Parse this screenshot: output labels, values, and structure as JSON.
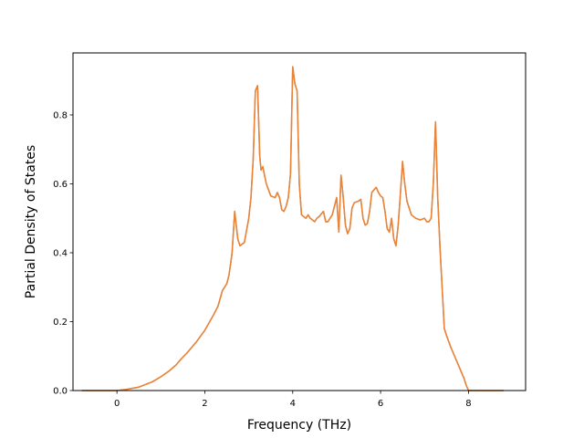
{
  "chart_data": {
    "type": "line",
    "title": "",
    "xlabel": "Frequency (THz)",
    "ylabel": "Partial Density of States",
    "xlim": [
      -1.0,
      9.3
    ],
    "ylim": [
      0.0,
      0.98
    ],
    "grid": false,
    "xticks": [
      0,
      2,
      4,
      6,
      8
    ],
    "xtick_labels": [
      "0",
      "2",
      "4",
      "6",
      "8"
    ],
    "yticks": [
      0.0,
      0.2,
      0.4,
      0.6,
      0.8
    ],
    "ytick_labels": [
      "0.0",
      "0.2",
      "0.4",
      "0.6",
      "0.8"
    ],
    "series": [
      {
        "color": "#e8833a",
        "x": [
          -0.8,
          0.0,
          0.2,
          0.5,
          0.8,
          1.0,
          1.2,
          1.35,
          1.45,
          1.6,
          1.8,
          2.0,
          2.2,
          2.3,
          2.4,
          2.5,
          2.55,
          2.6,
          2.62,
          2.68,
          2.75,
          2.8,
          2.9,
          3.0,
          3.05,
          3.1,
          3.15,
          3.2,
          3.25,
          3.28,
          3.32,
          3.35,
          3.4,
          3.5,
          3.6,
          3.65,
          3.7,
          3.75,
          3.8,
          3.85,
          3.9,
          3.95,
          4.0,
          4.05,
          4.1,
          4.15,
          4.2,
          4.3,
          4.35,
          4.4,
          4.5,
          4.55,
          4.6,
          4.7,
          4.75,
          4.8,
          4.9,
          5.0,
          5.05,
          5.1,
          5.15,
          5.2,
          5.25,
          5.3,
          5.35,
          5.4,
          5.5,
          5.55,
          5.6,
          5.65,
          5.7,
          5.75,
          5.8,
          5.9,
          5.95,
          6.0,
          6.05,
          6.1,
          6.15,
          6.2,
          6.25,
          6.3,
          6.35,
          6.4,
          6.45,
          6.5,
          6.55,
          6.6,
          6.7,
          6.8,
          6.9,
          7.0,
          7.05,
          7.1,
          7.15,
          7.2,
          7.25,
          7.3,
          7.35,
          7.4,
          7.45,
          7.5,
          7.6,
          7.7,
          7.8,
          7.9,
          7.95,
          8.0,
          8.05,
          8.2,
          8.5,
          8.8
        ],
        "values": [
          0.0,
          0.0,
          0.003,
          0.01,
          0.025,
          0.04,
          0.058,
          0.075,
          0.09,
          0.11,
          0.14,
          0.175,
          0.22,
          0.245,
          0.29,
          0.31,
          0.335,
          0.38,
          0.4,
          0.52,
          0.44,
          0.42,
          0.43,
          0.5,
          0.56,
          0.67,
          0.87,
          0.885,
          0.68,
          0.64,
          0.65,
          0.63,
          0.6,
          0.565,
          0.56,
          0.575,
          0.56,
          0.525,
          0.52,
          0.535,
          0.56,
          0.63,
          0.94,
          0.89,
          0.87,
          0.6,
          0.51,
          0.5,
          0.51,
          0.5,
          0.49,
          0.5,
          0.505,
          0.52,
          0.49,
          0.49,
          0.51,
          0.56,
          0.46,
          0.625,
          0.56,
          0.48,
          0.455,
          0.47,
          0.53,
          0.545,
          0.55,
          0.555,
          0.5,
          0.48,
          0.485,
          0.52,
          0.575,
          0.59,
          0.575,
          0.565,
          0.56,
          0.52,
          0.47,
          0.46,
          0.5,
          0.44,
          0.42,
          0.48,
          0.57,
          0.665,
          0.6,
          0.55,
          0.51,
          0.5,
          0.495,
          0.5,
          0.49,
          0.49,
          0.5,
          0.6,
          0.78,
          0.56,
          0.42,
          0.3,
          0.18,
          0.16,
          0.125,
          0.095,
          0.065,
          0.035,
          0.015,
          0.0,
          0.0,
          0.0,
          0.0,
          0.0
        ]
      },
      {
        "color": "#e8833a",
        "x": [
          -0.8,
          0.0,
          0.2,
          0.5,
          0.8,
          1.0,
          1.2,
          1.35,
          1.45,
          1.6,
          1.8,
          2.0,
          2.2,
          2.3,
          2.4,
          2.5,
          2.55,
          2.6,
          2.62,
          2.68,
          2.75,
          2.8,
          2.9,
          3.0,
          3.05,
          3.1,
          3.15,
          3.2,
          3.25,
          3.28,
          3.32,
          3.35,
          3.4,
          3.5,
          3.6,
          3.65,
          3.7,
          3.75,
          3.8,
          3.85,
          3.9,
          3.95,
          4.0,
          4.05,
          4.1,
          4.15,
          4.2,
          4.3,
          4.35,
          4.4,
          4.5,
          4.55,
          4.6,
          4.7,
          4.75,
          4.8,
          4.9,
          5.0,
          5.05,
          5.1,
          5.15,
          5.2,
          5.25,
          5.3,
          5.35,
          5.4,
          5.5,
          5.55,
          5.6,
          5.65,
          5.7,
          5.75,
          5.8,
          5.9,
          5.95,
          6.0,
          6.05,
          6.1,
          6.15,
          6.2,
          6.25,
          6.3,
          6.35,
          6.4,
          6.45,
          6.5,
          6.55,
          6.6,
          6.7,
          6.8,
          6.9,
          7.0,
          7.05,
          7.1,
          7.15,
          7.2,
          7.25,
          7.3,
          7.35,
          7.4,
          7.45,
          7.5,
          7.6,
          7.7,
          7.8,
          7.9,
          7.95,
          8.0,
          8.05,
          8.2,
          8.5,
          8.8
        ],
        "values": [
          0.0,
          0.0,
          0.003,
          0.01,
          0.025,
          0.04,
          0.058,
          0.075,
          0.09,
          0.11,
          0.14,
          0.175,
          0.22,
          0.245,
          0.29,
          0.31,
          0.335,
          0.38,
          0.4,
          0.52,
          0.44,
          0.42,
          0.43,
          0.5,
          0.56,
          0.67,
          0.87,
          0.885,
          0.68,
          0.64,
          0.65,
          0.63,
          0.6,
          0.565,
          0.56,
          0.575,
          0.56,
          0.525,
          0.52,
          0.535,
          0.56,
          0.63,
          0.94,
          0.89,
          0.87,
          0.6,
          0.51,
          0.5,
          0.51,
          0.5,
          0.49,
          0.5,
          0.505,
          0.52,
          0.49,
          0.49,
          0.51,
          0.56,
          0.46,
          0.625,
          0.56,
          0.48,
          0.455,
          0.47,
          0.53,
          0.545,
          0.55,
          0.555,
          0.5,
          0.48,
          0.485,
          0.52,
          0.575,
          0.59,
          0.575,
          0.565,
          0.56,
          0.52,
          0.47,
          0.46,
          0.5,
          0.44,
          0.42,
          0.48,
          0.57,
          0.665,
          0.6,
          0.55,
          0.51,
          0.5,
          0.495,
          0.5,
          0.49,
          0.49,
          0.5,
          0.6,
          0.78,
          0.56,
          0.42,
          0.3,
          0.18,
          0.16,
          0.125,
          0.095,
          0.065,
          0.035,
          0.015,
          0.0,
          0.0,
          0.0,
          0.0,
          0.0
        ]
      }
    ]
  }
}
